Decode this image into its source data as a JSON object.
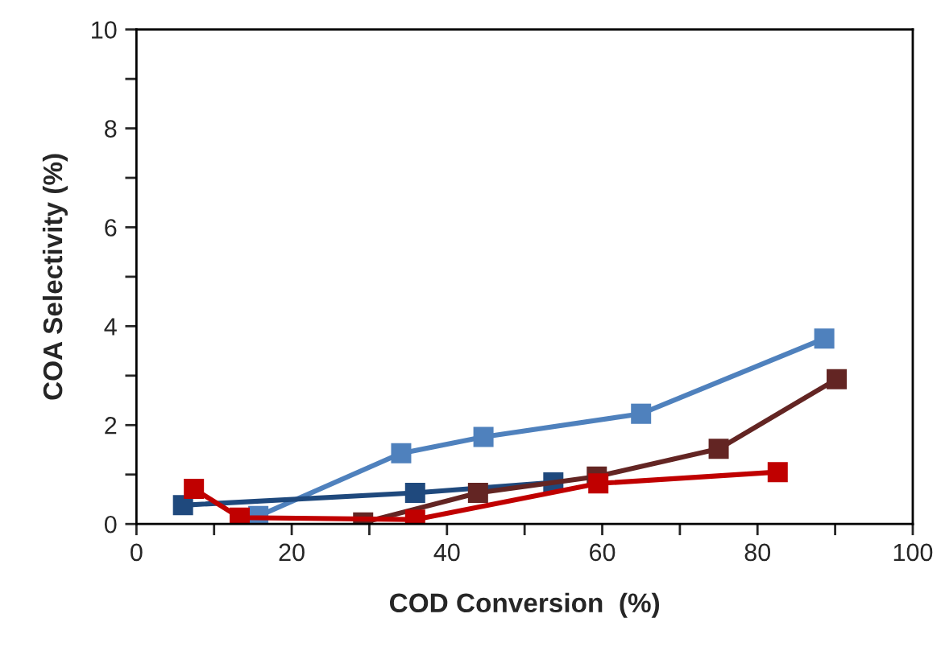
{
  "chart_data": {
    "type": "line",
    "xlabel": "COD Conversion  (%)",
    "ylabel": "COA Selectivity (%)",
    "xlim": [
      0,
      100
    ],
    "ylim": [
      0,
      10
    ],
    "xticks": [
      0,
      {
        "value": 10,
        "label": null
      },
      20,
      {
        "value": 30,
        "label": null
      },
      40,
      {
        "value": 50,
        "label": null
      },
      60,
      {
        "value": 70,
        "label": null
      },
      80,
      {
        "value": 90,
        "label": null
      },
      100
    ],
    "yticks": [
      0,
      {
        "value": 1,
        "label": null
      },
      2,
      {
        "value": 3,
        "label": null
      },
      4,
      {
        "value": 5,
        "label": null
      },
      6,
      {
        "value": 7,
        "label": null
      },
      8,
      {
        "value": 9,
        "label": null
      },
      10
    ],
    "marker": "square",
    "grid": false,
    "series": [
      {
        "color": "#4f81bd",
        "x": [
          15.7,
          34.1,
          44.7,
          65.0,
          88.6
        ],
        "values": [
          0.16,
          1.43,
          1.76,
          2.23,
          3.75
        ]
      },
      {
        "color": "#1f497d",
        "x": [
          6.0,
          35.9,
          53.7
        ],
        "values": [
          0.38,
          0.63,
          0.84
        ]
      },
      {
        "color": "#632523",
        "x": [
          29.2,
          44.0,
          59.3,
          75.0,
          90.2
        ],
        "values": [
          0.03,
          0.63,
          0.96,
          1.52,
          2.93
        ]
      },
      {
        "color": "#c00000",
        "x": [
          7.4,
          13.3,
          35.9,
          59.5,
          82.6
        ],
        "values": [
          0.71,
          0.13,
          0.09,
          0.82,
          1.05
        ]
      }
    ]
  }
}
